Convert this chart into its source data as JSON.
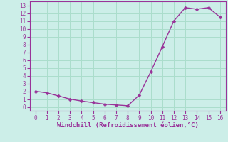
{
  "x": [
    0,
    1,
    2,
    3,
    4,
    5,
    6,
    7,
    8,
    9,
    10,
    11,
    12,
    13,
    14,
    15,
    16
  ],
  "y": [
    2.0,
    1.8,
    1.4,
    1.0,
    0.75,
    0.55,
    0.35,
    0.25,
    0.15,
    1.5,
    4.5,
    7.7,
    11.0,
    12.7,
    12.5,
    12.7,
    11.5
  ],
  "line_color": "#993399",
  "marker_color": "#993399",
  "bg_color": "#cceee8",
  "grid_color": "#aaddcc",
  "xlabel": "Windchill (Refroidissement éolien,°C)",
  "xlabel_color": "#993399",
  "tick_color": "#993399",
  "spine_color": "#993399",
  "xlim": [
    -0.5,
    16.5
  ],
  "ylim": [
    -0.5,
    13.5
  ],
  "xticks": [
    0,
    1,
    2,
    3,
    4,
    5,
    6,
    7,
    8,
    9,
    10,
    11,
    12,
    13,
    14,
    15,
    16
  ],
  "yticks": [
    0,
    1,
    2,
    3,
    4,
    5,
    6,
    7,
    8,
    9,
    10,
    11,
    12,
    13
  ],
  "marker_size": 2.5,
  "line_width": 1.0,
  "tick_fontsize": 5.5,
  "xlabel_fontsize": 6.5
}
